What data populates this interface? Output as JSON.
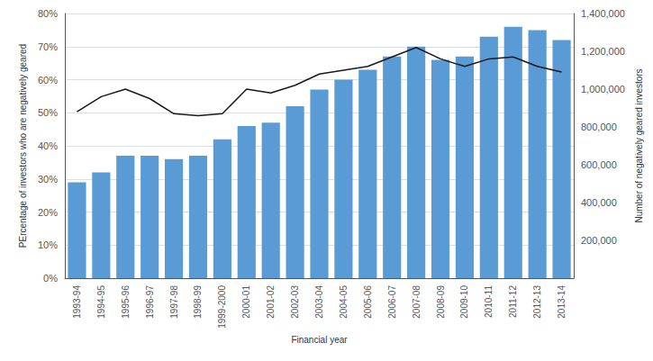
{
  "chart_data": {
    "type": "bar",
    "xlabel": "Financial year",
    "ylabel": "PErcentage of investors who are negatively geared",
    "y2label": "Number of negatively geared investors",
    "categories": [
      "1993-94",
      "1994-95",
      "1995-96",
      "1996-97",
      "1997-98",
      "1998-99",
      "1999-2000",
      "2000-01",
      "2001-02",
      "2002-03",
      "2003-04",
      "2004-05",
      "2005-06",
      "2006-07",
      "2007-08",
      "2008-09",
      "2009-10",
      "2010-11",
      "2011-12",
      "2012-13",
      "2013-14"
    ],
    "series": [
      {
        "type": "bar",
        "color": "#5b9bd5",
        "values": [
          0.29,
          0.32,
          0.37,
          0.37,
          0.36,
          0.37,
          0.42,
          0.46,
          0.47,
          0.52,
          0.57,
          0.6,
          0.63,
          0.67,
          0.7,
          0.66,
          0.67,
          0.73,
          0.76,
          0.75,
          0.72
        ]
      },
      {
        "type": "line",
        "axis": "y2",
        "color": "#1a1a1a",
        "values": [
          880000,
          960000,
          1000000,
          950000,
          870000,
          860000,
          870000,
          1000000,
          980000,
          1020000,
          1080000,
          1100000,
          1120000,
          1170000,
          1220000,
          1160000,
          1120000,
          1160000,
          1170000,
          1120000,
          1090000
        ]
      }
    ],
    "ylim": [
      0,
      0.8
    ],
    "yticks": [
      {
        "value": 0.0,
        "label": "0%"
      },
      {
        "value": 0.1,
        "label": "10%"
      },
      {
        "value": 0.2,
        "label": "20%"
      },
      {
        "value": 0.3,
        "label": "30%"
      },
      {
        "value": 0.4,
        "label": "40%"
      },
      {
        "value": 0.5,
        "label": "50%"
      },
      {
        "value": 0.6,
        "label": "60%"
      },
      {
        "value": 0.7,
        "label": "70%"
      },
      {
        "value": 0.8,
        "label": "80%"
      }
    ],
    "y2lim": [
      0,
      1400000
    ],
    "y2ticks": [
      {
        "value": 200000,
        "label": "200,000"
      },
      {
        "value": 400000,
        "label": "400,000"
      },
      {
        "value": 600000,
        "label": "600,000"
      },
      {
        "value": 800000,
        "label": "800,000"
      },
      {
        "value": 1000000,
        "label": "1,000,000"
      },
      {
        "value": 1200000,
        "label": "1,200,000"
      },
      {
        "value": 1400000,
        "label": "1,400,000"
      }
    ],
    "grid": true
  }
}
